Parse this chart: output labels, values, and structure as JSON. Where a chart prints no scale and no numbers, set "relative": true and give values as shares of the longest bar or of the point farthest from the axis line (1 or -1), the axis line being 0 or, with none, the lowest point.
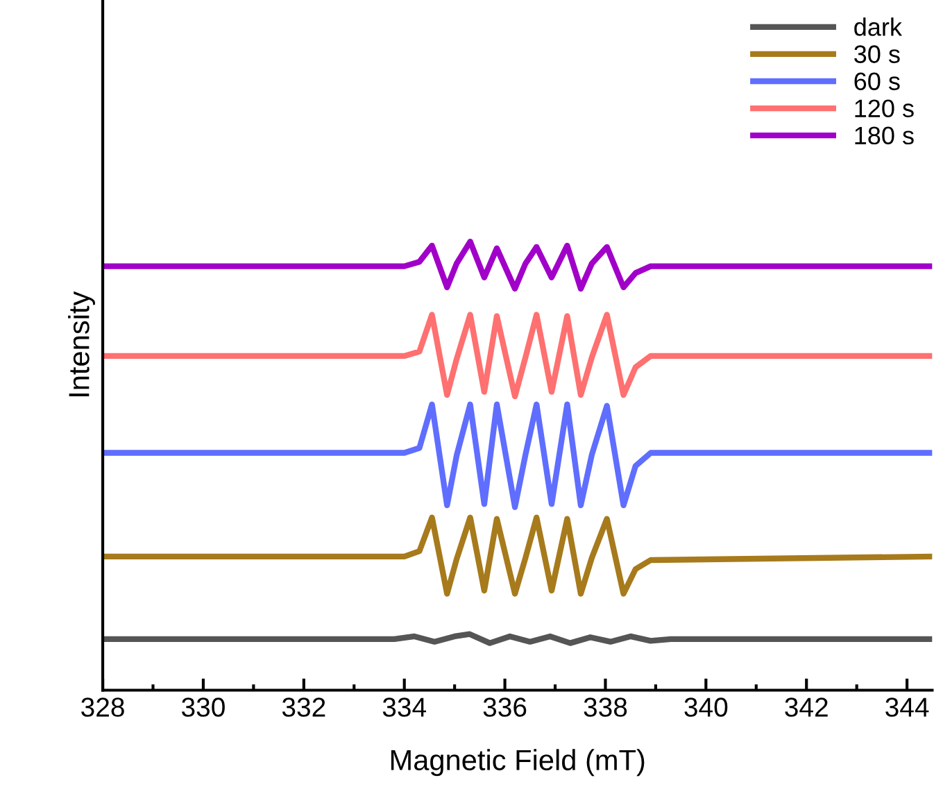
{
  "chart_data": {
    "type": "line",
    "relative": true,
    "xlabel": "Magnetic Field (mT)",
    "ylabel": "Intensity",
    "xlim": [
      328,
      344.5
    ],
    "xticks": [
      328,
      {
        "value": 329,
        "label": null
      },
      330,
      {
        "value": 331,
        "label": null
      },
      332,
      {
        "value": 333,
        "label": null
      },
      334,
      {
        "value": 335,
        "label": null
      },
      336,
      {
        "value": 337,
        "label": null
      },
      338,
      {
        "value": 339,
        "label": null
      },
      340,
      {
        "value": 341,
        "label": null
      },
      342,
      {
        "value": 343,
        "label": null
      },
      344
    ],
    "x": [
      328,
      334.0,
      334.3,
      334.55,
      334.85,
      335.04,
      335.31,
      335.59,
      335.84,
      336.2,
      336.41,
      336.63,
      336.93,
      337.24,
      337.51,
      337.73,
      338.03,
      338.36,
      338.6,
      338.9,
      344.5
    ],
    "legend": "top right",
    "grid": false,
    "line_style": "solid",
    "marker": "none",
    "series": [
      {
        "name": "dark",
        "color": "#555555",
        "x": [
          328,
          333.8,
          334.2,
          334.6,
          335.0,
          335.3,
          335.7,
          336.1,
          336.5,
          336.9,
          337.3,
          337.7,
          338.1,
          338.5,
          338.9,
          339.3,
          344.5
        ],
        "values": [
          0.114,
          0.114,
          0.12,
          0.108,
          0.12,
          0.125,
          0.105,
          0.12,
          0.108,
          0.12,
          0.105,
          0.118,
          0.108,
          0.12,
          0.11,
          0.114,
          0.114
        ]
      },
      {
        "name": "30 s",
        "color": "#a77a1c",
        "values": [
          0.298,
          0.298,
          0.31,
          0.385,
          0.215,
          0.292,
          0.385,
          0.222,
          0.382,
          0.215,
          0.295,
          0.385,
          0.222,
          0.382,
          0.215,
          0.295,
          0.382,
          0.215,
          0.27,
          0.29,
          0.298
        ]
      },
      {
        "name": "60 s",
        "color": "#5f6eff",
        "values": [
          0.529,
          0.529,
          0.54,
          0.637,
          0.412,
          0.523,
          0.637,
          0.415,
          0.637,
          0.408,
          0.525,
          0.637,
          0.415,
          0.637,
          0.412,
          0.525,
          0.634,
          0.412,
          0.5,
          0.529,
          0.529
        ]
      },
      {
        "name": "120 s",
        "color": "#ff7070",
        "values": [
          0.745,
          0.745,
          0.755,
          0.837,
          0.658,
          0.738,
          0.837,
          0.665,
          0.834,
          0.655,
          0.742,
          0.837,
          0.665,
          0.834,
          0.658,
          0.742,
          0.837,
          0.658,
          0.72,
          0.745,
          0.745
        ]
      },
      {
        "name": "180 s",
        "color": "#a100c8",
        "values": [
          0.945,
          0.945,
          0.955,
          0.991,
          0.898,
          0.951,
          1.0,
          0.92,
          0.985,
          0.895,
          0.951,
          0.988,
          0.92,
          0.991,
          0.895,
          0.951,
          0.988,
          0.898,
          0.93,
          0.945,
          0.945
        ]
      }
    ]
  }
}
